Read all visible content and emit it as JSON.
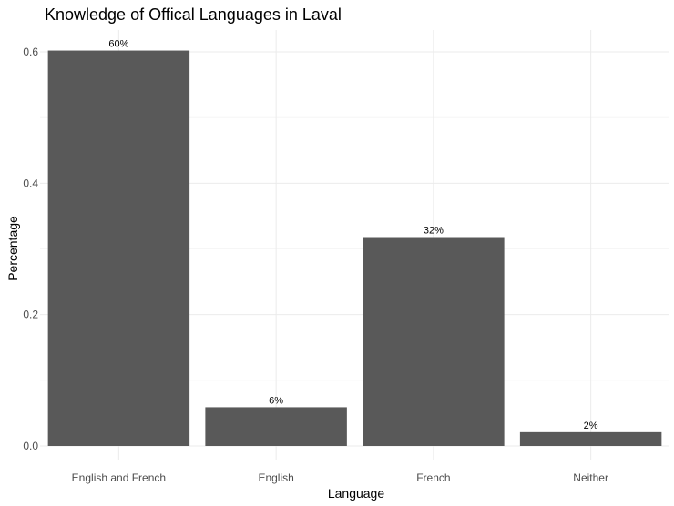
{
  "chart_data": {
    "type": "bar",
    "title": "Knowledge of Offical Languages in Laval",
    "xlabel": "Language",
    "ylabel": "Percentage",
    "categories": [
      "English and French",
      "English",
      "French",
      "Neither"
    ],
    "values": [
      0.602,
      0.059,
      0.318,
      0.021
    ],
    "data_labels": [
      "60%",
      "6%",
      "32%",
      "2%"
    ],
    "yticks": [
      0.0,
      0.2,
      0.4,
      0.6
    ],
    "ytick_labels": [
      "0.0",
      "0.2",
      "0.4",
      "0.6"
    ],
    "ylim": [
      0,
      0.63
    ],
    "bar_color": "#595959",
    "grid": true,
    "legend": "none"
  }
}
